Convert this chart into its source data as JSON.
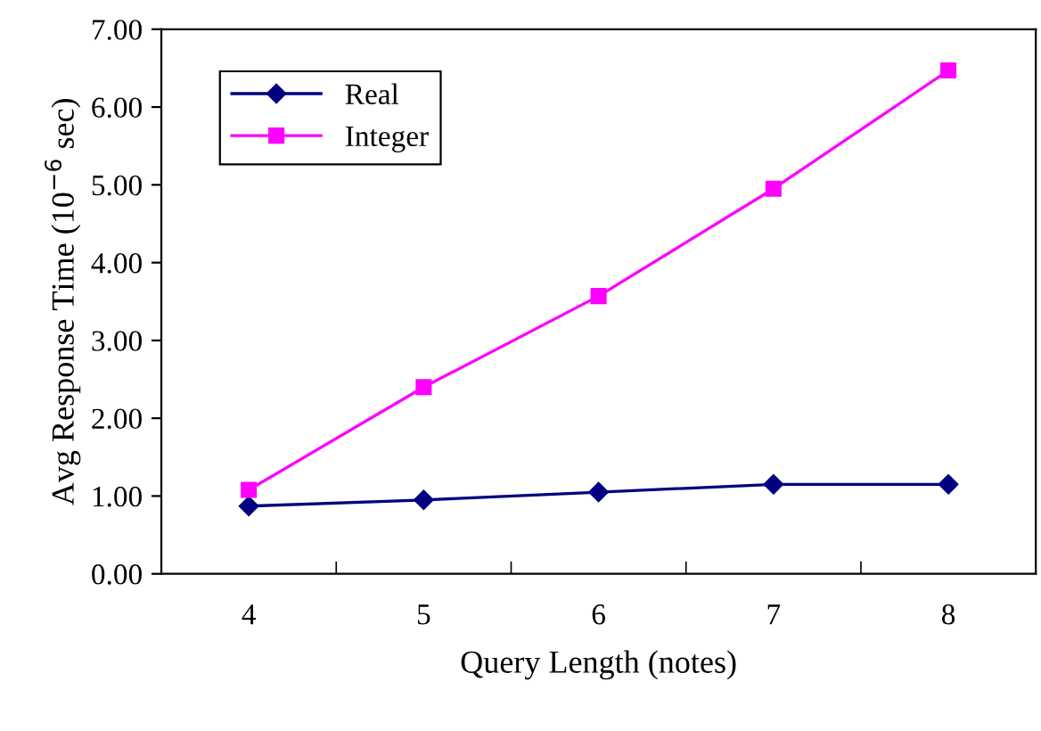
{
  "chart_data": {
    "type": "line",
    "xlabel": "Query Length (notes)",
    "ylabel": "Avg Response Time (10$^{−6}$ sec)",
    "categories": [
      "4",
      "5",
      "6",
      "7",
      "8"
    ],
    "series": [
      {
        "name": "Real",
        "color": "#000080",
        "marker": "diamond",
        "values": [
          0.87,
          0.95,
          1.05,
          1.15,
          1.15
        ]
      },
      {
        "name": "Integer",
        "color": "#ff00ff",
        "marker": "square",
        "values": [
          1.08,
          2.4,
          3.57,
          4.95,
          6.47
        ]
      }
    ],
    "ylim": [
      0,
      7
    ],
    "yticks": [
      {
        "value": 0,
        "label": "0.00"
      },
      {
        "value": 1,
        "label": "1.00"
      },
      {
        "value": 2,
        "label": "2.00"
      },
      {
        "value": 3,
        "label": "3.00"
      },
      {
        "value": 4,
        "label": "4.00"
      },
      {
        "value": 5,
        "label": "5.00"
      },
      {
        "value": 6,
        "label": "6.00"
      },
      {
        "value": 7,
        "label": "7.00"
      }
    ],
    "grid": false,
    "legend": "top left",
    "line_style": "solid"
  }
}
